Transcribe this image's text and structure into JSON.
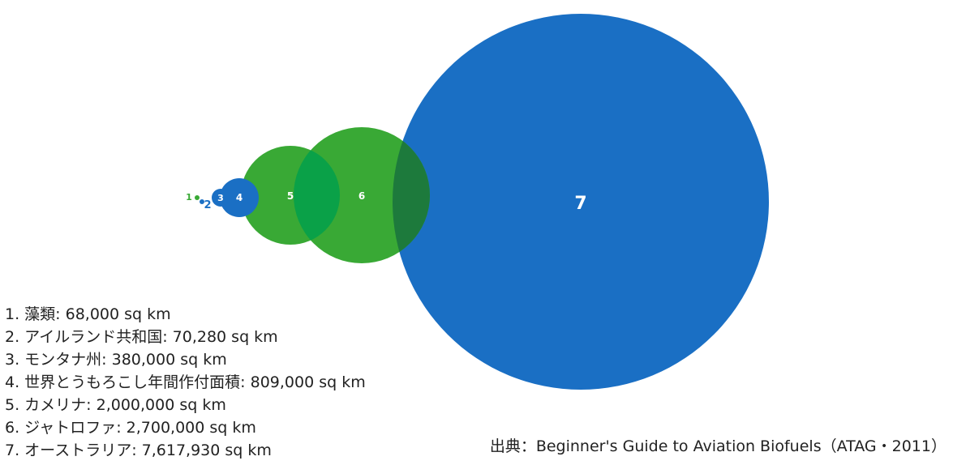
{
  "chart_data": {
    "type": "bubble",
    "unit": "sq km",
    "items": [
      {
        "num": "1",
        "name": "藻類",
        "value": 68000,
        "value_label": "68,000 sq km",
        "color": "#39a935"
      },
      {
        "num": "2",
        "name": "アイルランド共和国",
        "value": 70280,
        "value_label": "70,280 sq km",
        "color": "#1a6fc4"
      },
      {
        "num": "3",
        "name": "モンタナ州",
        "value": 380000,
        "value_label": "380,000 sq km",
        "color": "#1a6fc4"
      },
      {
        "num": "4",
        "name": "世界とうもろこし年間作付面積",
        "value": 809000,
        "value_label": "809,000 sq km",
        "color": "#1a6fc4"
      },
      {
        "num": "5",
        "name": "カメリナ",
        "value": 2000000,
        "value_label": "2,000,000 sq km",
        "color": "#39a935"
      },
      {
        "num": "6",
        "name": "ジャトロファ",
        "value": 2700000,
        "value_label": "2,700,000 sq km",
        "color": "#39a935"
      },
      {
        "num": "7",
        "name": "オーストラリア",
        "value": 7617930,
        "value_label": "7,617,930 sq km",
        "color": "#1a6fc4"
      }
    ],
    "legend_lines": [
      "1. 藻類: 68,000 sq km",
      "2. アイルランド共和国: 70,280 sq km",
      "3. モンタナ州: 380,000 sq km",
      "4. 世界とうもろこし年間作付面積: 809,000 sq km",
      "5. カメリナ: 2,000,000 sq km",
      "6. ジャトロファ: 2,700,000 sq km",
      "7. オーストラリア: 7,617,930 sq km"
    ]
  },
  "source": "出典：Beginner's Guide to Aviation Biofuels（ATAG・2011）",
  "colors": {
    "blue": "#1a6fc4",
    "green": "#39a935",
    "green_overlap": "#0aa148",
    "dark_overlap": "#1d7a3c",
    "label_fill": "#ffffff",
    "text": "#222222"
  }
}
